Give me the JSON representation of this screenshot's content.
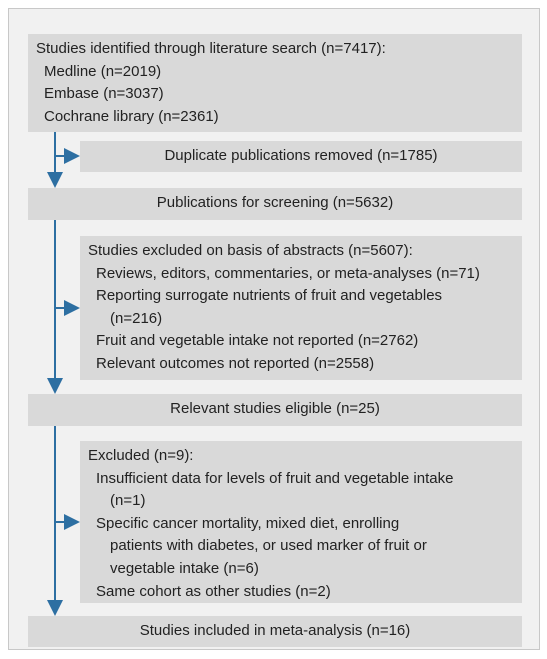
{
  "boxes": [
    {
      "lines": [
        "Studies identified through literature search (n=7417):",
        "Medline (n=2019)",
        "Embase (n=3037)",
        "Cochrane library (n=2361)"
      ]
    },
    {
      "lines": [
        "Duplicate publications removed (n=1785)"
      ]
    },
    {
      "lines": [
        "Publications for screening (n=5632)"
      ]
    },
    {
      "lines": [
        "Studies excluded on basis of abstracts (n=5607):",
        "Reviews, editors, commentaries, or meta-analyses (n=71)",
        "Reporting surrogate nutrients of fruit and vegetables",
        "(n=216)",
        "Fruit and vegetable intake not reported (n=2762)",
        "Relevant outcomes not reported (n=2558)"
      ]
    },
    {
      "lines": [
        "Relevant studies eligible (n=25)"
      ]
    },
    {
      "lines": [
        "Excluded (n=9):",
        "Insufficient data for levels of fruit and vegetable intake",
        "(n=1)",
        "Specific cancer mortality, mixed diet, enrolling",
        "patients with diabetes, or used marker of fruit or",
        "vegetable intake (n=6)",
        "Same cohort as other studies (n=2)"
      ]
    },
    {
      "lines": [
        "Studies included in meta-analysis (n=16)"
      ]
    }
  ]
}
